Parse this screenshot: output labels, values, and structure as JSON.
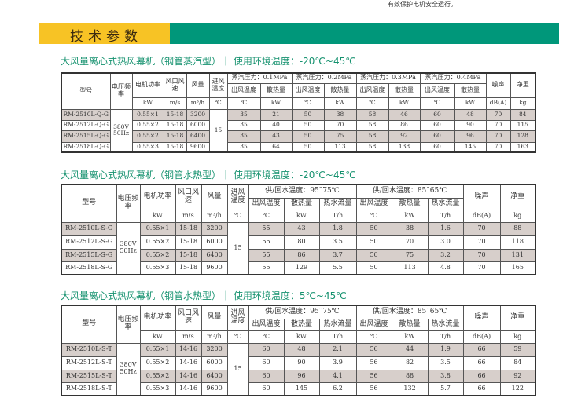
{
  "top_note": "有效保护电机安全运行。",
  "banner": {
    "label": "技术参数",
    "colors": {
      "yellow": "#f7c325",
      "green": "#00977a"
    }
  },
  "common": {
    "model": "型号",
    "voltage": "电压频率",
    "power": "电机功率",
    "speed": "风口风速",
    "flow": "风量",
    "inlet": "进风温度",
    "noise": "噪声",
    "weight": "净重",
    "u_power": "kW",
    "u_speed": "m/s",
    "u_flow": "m³/h",
    "u_inlet": "℃",
    "u_noise": "dB(A)",
    "u_weight": "kg",
    "voltage_value": "380V 50Hz",
    "inlet_value": "15"
  },
  "tables": [
    {
      "title": "大风量离心式热风幕机（钢管蒸汽型）｜ 使用环境温度：-20℃~45℃",
      "groups": [
        "蒸汽压力：0.1MPa",
        "蒸汽压力：0.2MPa",
        "蒸汽压力：0.3MPa",
        "蒸汽压力：0.4MPa"
      ],
      "subs": [
        "出风温度",
        "散热量"
      ],
      "sub_units": [
        "℃",
        "kW"
      ],
      "rows": [
        {
          "model": "RM-2510L-Q-G",
          "power": "0.55×1",
          "speed": "15-18",
          "flow": "3200",
          "values": [
            "35",
            "21",
            "50",
            "38",
            "58",
            "46",
            "60",
            "48"
          ],
          "noise": "70",
          "weight": "84"
        },
        {
          "model": "RM-2512L-Q-G",
          "power": "0.55×2",
          "speed": "15-18",
          "flow": "6000",
          "values": [
            "35",
            "40",
            "50",
            "70",
            "58",
            "86",
            "60",
            "90"
          ],
          "noise": "70",
          "weight": "115"
        },
        {
          "model": "RM-2515L-Q-G",
          "power": "0.55×2",
          "speed": "15-18",
          "flow": "6400",
          "values": [
            "35",
            "43",
            "50",
            "75",
            "58",
            "92",
            "60",
            "96"
          ],
          "noise": "70",
          "weight": "128"
        },
        {
          "model": "RM-2518L-Q-G",
          "power": "0.55×3",
          "speed": "15-18",
          "flow": "9600",
          "values": [
            "35",
            "64",
            "50",
            "113",
            "58",
            "138",
            "60",
            "145"
          ],
          "noise": "70",
          "weight": "163"
        }
      ]
    },
    {
      "title": "大风量离心式热风幕机（钢管水热型）｜ 使用环境温度：-20℃~45℃",
      "groups": [
        "供/回水温度：95˜75℃",
        "供/回水温度：85˜65℃"
      ],
      "subs": [
        "出风温度",
        "散热量",
        "热水流量"
      ],
      "sub_units": [
        "℃",
        "kW",
        "T/h"
      ],
      "rows": [
        {
          "model": "RM-2510L-S-G",
          "power": "0.55×1",
          "speed": "15-18",
          "flow": "3200",
          "values": [
            "55",
            "43",
            "1.8",
            "50",
            "38",
            "1.6"
          ],
          "noise": "70",
          "weight": "88"
        },
        {
          "model": "RM-2512L-S-G",
          "power": "0.55×2",
          "speed": "15-18",
          "flow": "6000",
          "values": [
            "55",
            "80",
            "3.5",
            "50",
            "70",
            "3.0"
          ],
          "noise": "70",
          "weight": "118"
        },
        {
          "model": "RM-2515L-S-G",
          "power": "0.55×2",
          "speed": "15-18",
          "flow": "6400",
          "values": [
            "55",
            "86",
            "3.7",
            "50",
            "75",
            "3.2"
          ],
          "noise": "70",
          "weight": "131"
        },
        {
          "model": "RM-2518L-S-G",
          "power": "0.55×3",
          "speed": "15-18",
          "flow": "9600",
          "values": [
            "55",
            "129",
            "5.5",
            "50",
            "113",
            "4.8"
          ],
          "noise": "70",
          "weight": "165"
        }
      ]
    },
    {
      "title": "大风量离心式热风幕机（钢管水热型）｜ 使用环境温度：5℃~45℃",
      "groups": [
        "供/回水温度：95˜75℃",
        "供/回水温度：85˜65℃"
      ],
      "subs": [
        "出风温度",
        "散热量",
        "热水流量"
      ],
      "sub_units": [
        "℃",
        "kW",
        "T/h"
      ],
      "rows": [
        {
          "model": "RM-2510L-S-T",
          "power": "0.55×1",
          "speed": "14-16",
          "flow": "3200",
          "values": [
            "60",
            "48",
            "2.1",
            "56",
            "44",
            "1.9"
          ],
          "noise": "66",
          "weight": "59"
        },
        {
          "model": "RM-2512L-S-T",
          "power": "0.55×2",
          "speed": "14-16",
          "flow": "6000",
          "values": [
            "60",
            "90",
            "3.9",
            "56",
            "82",
            "3.5"
          ],
          "noise": "66",
          "weight": "84"
        },
        {
          "model": "RM-2515L-S-T",
          "power": "0.55×2",
          "speed": "14-16",
          "flow": "6400",
          "values": [
            "60",
            "96",
            "4.1",
            "56",
            "88",
            "3.8"
          ],
          "noise": "66",
          "weight": "92"
        },
        {
          "model": "RM-2518L-S-T",
          "power": "0.55×3",
          "speed": "14-16",
          "flow": "9600",
          "values": [
            "60",
            "145",
            "6.2",
            "56",
            "132",
            "5.7"
          ],
          "noise": "66",
          "weight": "122"
        }
      ]
    }
  ]
}
